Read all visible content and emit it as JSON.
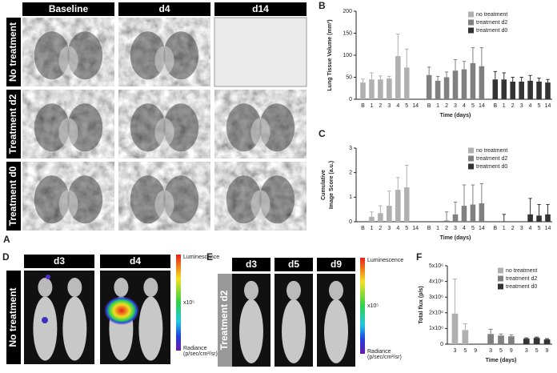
{
  "panel_labels": [
    "A",
    "D",
    "E"
  ],
  "mri": {
    "columns": [
      "Baseline",
      "d4",
      "d14"
    ],
    "rows": [
      "No treatment",
      "Treatment d2",
      "Treatment d0"
    ]
  },
  "bioluminescence": [
    {
      "days": [
        "d3",
        "d4"
      ],
      "group": "No treatment",
      "colorbar": {
        "title": "Luminescence",
        "scale": "x10⁵",
        "unit_title": "Radiance",
        "unit": "(p/sec/cm²/sr)"
      }
    },
    {
      "days": [
        "d3",
        "d5",
        "d9"
      ],
      "group": "Treatment d2",
      "colorbar": {
        "title": "Luminescence",
        "scale": "x10⁵",
        "unit_title": "Radiance",
        "unit": "(p/sec/cm²/sr)"
      }
    }
  ],
  "chart_data": [
    {
      "type": "bar",
      "panel": "B",
      "ylabel": [
        "Lung Tissue Volume (mm³)"
      ],
      "xlabel": "Time (days)",
      "categories": [
        "B",
        "1",
        "2",
        "3",
        "4",
        "5",
        "14"
      ],
      "series": [
        {
          "name": "no treatment",
          "color": "#b0b0b0",
          "values": [
            38,
            45,
            45,
            47,
            98,
            72,
            null
          ],
          "errors": [
            8,
            15,
            8,
            5,
            50,
            42,
            null
          ]
        },
        {
          "name": "treatment d2",
          "color": "#808080",
          "values": [
            55,
            42,
            50,
            65,
            68,
            82,
            75
          ],
          "errors": [
            18,
            10,
            12,
            25,
            18,
            35,
            42
          ]
        },
        {
          "name": "treatment d0",
          "color": "#333333",
          "values": [
            45,
            45,
            40,
            40,
            42,
            40,
            38
          ],
          "errors": [
            18,
            15,
            10,
            10,
            12,
            8,
            7
          ]
        }
      ],
      "ylim": [
        0,
        200
      ],
      "yticks": [
        0,
        50,
        100,
        150,
        200
      ]
    },
    {
      "type": "bar",
      "panel": "C",
      "ylabel": [
        "Cumulative",
        "Image Score (a.u.)"
      ],
      "xlabel": "Time (days)",
      "categories": [
        "B",
        "1",
        "2",
        "3",
        "4",
        "5",
        "14"
      ],
      "series": [
        {
          "name": "no treatment",
          "color": "#b0b0b0",
          "values": [
            0,
            0.2,
            0.35,
            0.65,
            1.3,
            1.4,
            null
          ],
          "errors": [
            0,
            0.2,
            0.3,
            0.6,
            0.5,
            0.9,
            null
          ]
        },
        {
          "name": "treatment d2",
          "color": "#808080",
          "values": [
            0,
            0,
            0.05,
            0.3,
            0.65,
            0.7,
            0.75
          ],
          "errors": [
            0,
            0,
            0.35,
            0.5,
            0.85,
            0.8,
            0.8
          ]
        },
        {
          "name": "treatment d0",
          "color": "#333333",
          "values": [
            0,
            0,
            0,
            0,
            0.3,
            0.25,
            0.3
          ],
          "errors": [
            0,
            0.3,
            0,
            0,
            0.65,
            0.45,
            0.4
          ]
        }
      ],
      "ylim": [
        0,
        3
      ],
      "yticks": [
        0,
        1,
        2,
        3
      ]
    },
    {
      "type": "bar",
      "panel": "F",
      "ylabel": [
        "Total flux (p/s)"
      ],
      "xlabel": "Time (days)",
      "categories": [
        "3",
        "5",
        "9"
      ],
      "series": [
        {
          "name": "no treatment",
          "color": "#b0b0b0",
          "values": [
            1950000,
            900000,
            null
          ],
          "errors": [
            2200000,
            400000,
            null
          ]
        },
        {
          "name": "treatment d2",
          "color": "#808080",
          "values": [
            650000,
            550000,
            500000
          ],
          "errors": [
            300000,
            100000,
            100000
          ]
        },
        {
          "name": "treatment d0",
          "color": "#333333",
          "values": [
            350000,
            400000,
            300000
          ],
          "errors": [
            50000,
            50000,
            50000
          ]
        }
      ],
      "ylim": [
        0,
        5000000
      ],
      "yticks": [
        0,
        {
          "value": 1000000,
          "label": "1x10⁶"
        },
        {
          "value": 2000000,
          "label": "2x10⁶"
        },
        {
          "value": 3000000,
          "label": "3x10⁶"
        },
        {
          "value": 4000000,
          "label": "4x10⁶"
        },
        {
          "value": 5000000,
          "label": "5x10⁶"
        }
      ]
    }
  ]
}
